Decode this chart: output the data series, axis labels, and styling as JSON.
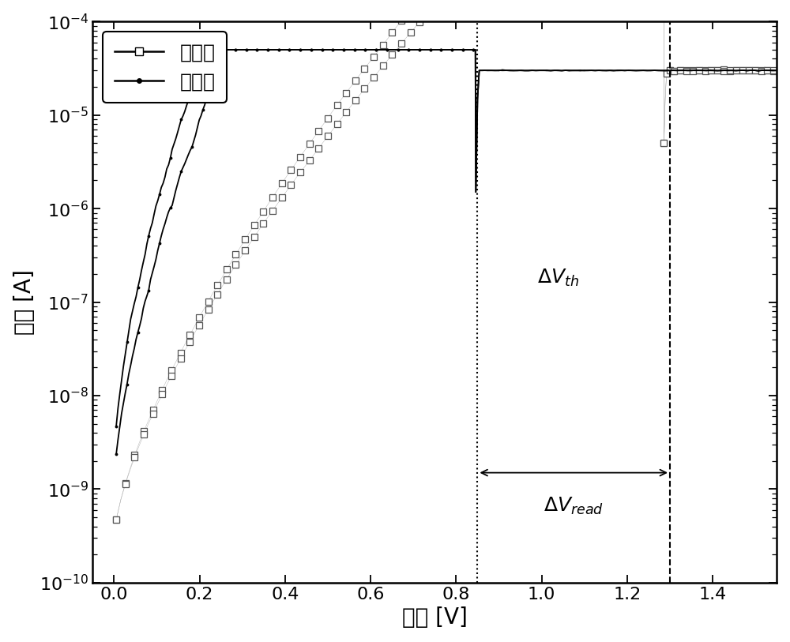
{
  "xlabel": "电压 [V]",
  "ylabel": "电流 [A]",
  "xlim": [
    -0.05,
    1.55
  ],
  "legend_labels": [
    "高阻态",
    "低阻态"
  ],
  "vth_lrs": 0.85,
  "vth_hrs": 1.3,
  "background_color": "#ffffff",
  "xlabel_fontsize": 20,
  "ylabel_fontsize": 20,
  "tick_fontsize": 16,
  "legend_fontsize": 18,
  "annotation_fontsize": 18
}
